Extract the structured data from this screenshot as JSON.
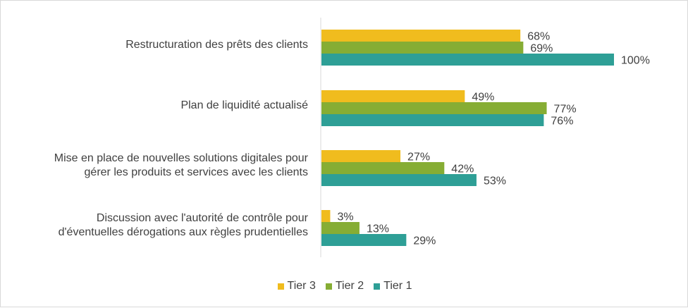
{
  "chart_data": {
    "type": "bar",
    "orientation": "horizontal",
    "categories": [
      "Restructuration des prêts des clients",
      "Plan de liquidité actualisé",
      "Mise en place de nouvelles solutions digitales pour gérer les produits et services avec les clients",
      "Discussion avec l'autorité de contrôle pour d'éventuelles dérogations aux règles prudentielles"
    ],
    "category_lines": [
      [
        "Restructuration des prêts des clients"
      ],
      [
        "Plan de liquidité actualisé"
      ],
      [
        "Mise en place de nouvelles solutions digitales pour",
        "gérer les produits et services avec les clients"
      ],
      [
        "Discussion avec l'autorité de contrôle pour",
        "d'éventuelles dérogations aux règles prudentielles"
      ]
    ],
    "series": [
      {
        "name": "Tier 3",
        "color": "#f0bc1e",
        "values": [
          68,
          49,
          27,
          3
        ],
        "labels": [
          "68%",
          "49%",
          "27%",
          "3%"
        ]
      },
      {
        "name": "Tier 2",
        "color": "#86ad34",
        "values": [
          69,
          77,
          42,
          13
        ],
        "labels": [
          "69%",
          "77%",
          "42%",
          "13%"
        ]
      },
      {
        "name": "Tier 1",
        "color": "#2e9f96",
        "values": [
          100,
          76,
          53,
          29
        ],
        "labels": [
          "100%",
          "76%",
          "53%",
          "29%"
        ]
      }
    ],
    "xlim": [
      0,
      100
    ],
    "grid": false,
    "legend_position": "bottom",
    "title": "",
    "xlabel": "",
    "ylabel": ""
  }
}
